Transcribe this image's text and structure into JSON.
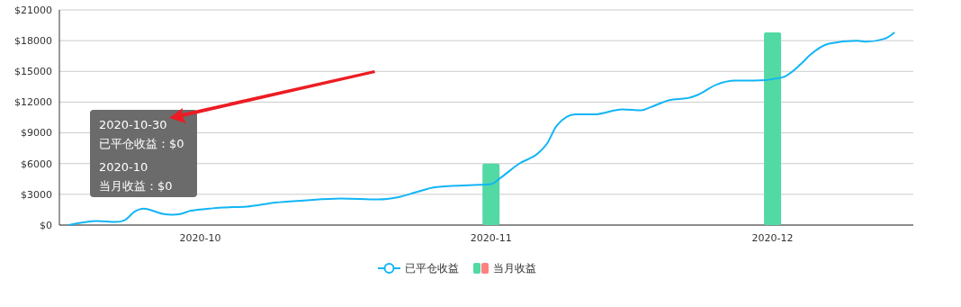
{
  "chart_data": {
    "type": "line",
    "xlim": [
      "2020-09-16",
      "2020-12-16"
    ],
    "xticks": [
      {
        "value": "2020-10-01",
        "label": "2020-10"
      },
      {
        "value": "2020-11-01",
        "label": "2020-11"
      },
      {
        "value": "2020-12-01",
        "label": "2020-12"
      }
    ],
    "ylim": [
      0,
      21000
    ],
    "yticks": [
      {
        "value": 0,
        "label": "$0"
      },
      {
        "value": 3000,
        "label": "$3000"
      },
      {
        "value": 6000,
        "label": "$6000"
      },
      {
        "value": 9000,
        "label": "$9000"
      },
      {
        "value": 12000,
        "label": "$12000"
      },
      {
        "value": 15000,
        "label": "$15000"
      },
      {
        "value": 18000,
        "label": "$18000"
      },
      {
        "value": 21000,
        "label": "$21000"
      }
    ],
    "grid": "y",
    "legend": "bottom",
    "series": [
      {
        "name": "已平仓收益",
        "color": "#12b5f5",
        "x": [
          "2020-09-17",
          "2020-09-20",
          "2020-09-22",
          "2020-09-23",
          "2020-09-24",
          "2020-09-25",
          "2020-09-27",
          "2020-09-28",
          "2020-09-29",
          "2020-09-30",
          "2020-10-02",
          "2020-10-03",
          "2020-10-06",
          "2020-10-09",
          "2020-10-12",
          "2020-10-16",
          "2020-10-20",
          "2020-10-22",
          "2020-10-24",
          "2020-10-26",
          "2020-10-30",
          "2020-11-01",
          "2020-11-02",
          "2020-11-04",
          "2020-11-06",
          "2020-11-07",
          "2020-11-08",
          "2020-11-10",
          "2020-11-12",
          "2020-11-15",
          "2020-11-17",
          "2020-11-18",
          "2020-11-20",
          "2020-11-22",
          "2020-11-23",
          "2020-11-25",
          "2020-11-27",
          "2020-11-29",
          "2020-12-02",
          "2020-12-04",
          "2020-12-05",
          "2020-12-07",
          "2020-12-10",
          "2020-12-11",
          "2020-12-13",
          "2020-12-14"
        ],
        "values": [
          0,
          400,
          300,
          500,
          1300,
          1600,
          1100,
          1000,
          1100,
          1400,
          1600,
          1700,
          1800,
          2200,
          2400,
          2600,
          2500,
          2700,
          3200,
          3700,
          3900,
          4000,
          4600,
          6000,
          7000,
          8000,
          9700,
          10800,
          10800,
          11300,
          11200,
          11500,
          12200,
          12400,
          12700,
          13700,
          14100,
          14100,
          14400,
          15700,
          16600,
          17700,
          18000,
          17900,
          18200,
          18800
        ]
      },
      {
        "name": "当月收益",
        "type": "bar",
        "color": "#52d9a4",
        "x": [
          "2020-10-01",
          "2020-11-01",
          "2020-12-01"
        ],
        "values": [
          0,
          6000,
          18800
        ]
      }
    ],
    "annotations": [
      "2020-10-30",
      "已平仓收益：$0",
      "2020-10",
      "当月收益：$0"
    ]
  }
}
